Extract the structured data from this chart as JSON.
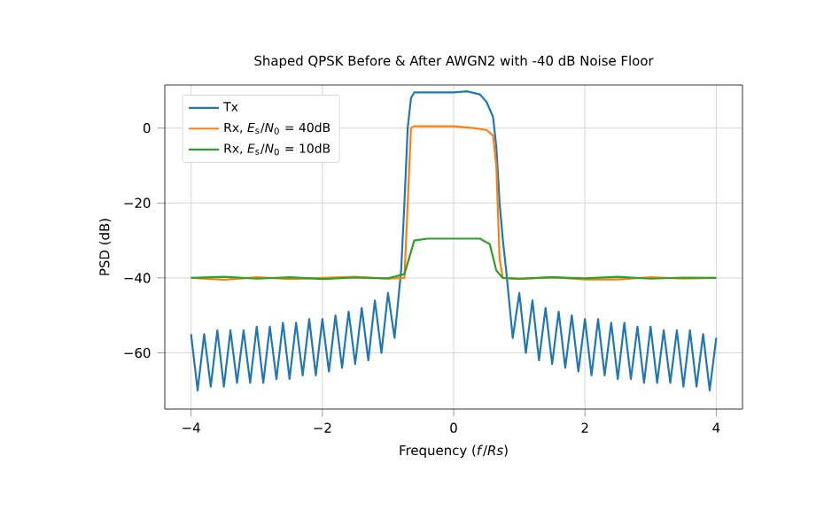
{
  "chart_data": {
    "type": "line",
    "title": "Shaped QPSK Before & After AWGN2 with -40 dB Noise Floor",
    "xlabel": "Frequency (*f*/*Rs*)",
    "ylabel": "PSD (dB)",
    "xlim": [
      -4.4,
      4.4
    ],
    "ylim": [
      -75,
      11.5
    ],
    "xticks": [
      {
        "value": -4,
        "label": "−4"
      },
      {
        "value": -2,
        "label": "−2"
      },
      0,
      2,
      4
    ],
    "yticks": [
      {
        "value": -60,
        "label": "−60"
      },
      {
        "value": -40,
        "label": "−40"
      },
      {
        "value": -20,
        "label": "−20"
      },
      0
    ],
    "grid": true,
    "legend": "top left",
    "line_style": "solid",
    "marker": "none",
    "series": [
      {
        "name": "Tx",
        "color": "#1f77b4",
        "x": [
          -4.0,
          -3.9,
          -3.8,
          -3.7,
          -3.6,
          -3.5,
          -3.4,
          -3.3,
          -3.2,
          -3.1,
          -3.0,
          -2.9,
          -2.8,
          -2.7,
          -2.6,
          -2.5,
          -2.4,
          -2.3,
          -2.2,
          -2.1,
          -2.0,
          -1.9,
          -1.8,
          -1.7,
          -1.6,
          -1.5,
          -1.4,
          -1.3,
          -1.2,
          -1.1,
          -1.0,
          -0.9,
          -0.8,
          -0.75,
          -0.7,
          -0.65,
          -0.6,
          -0.4,
          -0.2,
          0,
          0.2,
          0.4,
          0.5,
          0.6,
          0.65,
          0.7,
          0.75,
          0.8,
          0.9,
          1.0,
          1.1,
          1.2,
          1.3,
          1.4,
          1.5,
          1.6,
          1.7,
          1.8,
          1.9,
          2.0,
          2.1,
          2.2,
          2.3,
          2.4,
          2.5,
          2.6,
          2.7,
          2.8,
          2.9,
          3.0,
          3.1,
          3.2,
          3.3,
          3.4,
          3.5,
          3.6,
          3.7,
          3.8,
          3.9,
          4.0
        ],
        "values": [
          -55,
          -70,
          -55,
          -69,
          -54,
          -69,
          -54,
          -68,
          -54,
          -68,
          -53,
          -68,
          -53,
          -67,
          -52,
          -67,
          -52,
          -66,
          -51,
          -66,
          -51,
          -65,
          -50,
          -64,
          -49,
          -63,
          -48,
          -62,
          -46,
          -60,
          -44,
          -56,
          -38,
          -20,
          0,
          8,
          9.5,
          9.5,
          9.5,
          9.5,
          9.8,
          9,
          7,
          3,
          -5,
          -20,
          -30,
          -38,
          -56,
          -44,
          -60,
          -46,
          -62,
          -48,
          -63,
          -49,
          -64,
          -50,
          -65,
          -51,
          -66,
          -51,
          -66,
          -52,
          -67,
          -52,
          -67,
          -53,
          -68,
          -53,
          -68,
          -54,
          -68,
          -54,
          -69,
          -54,
          -69,
          -55,
          -70,
          -56
        ]
      },
      {
        "name": "Rx, *E*$_{s}$/*N*$_{0}$ =  40dB",
        "color": "#ff7f0e",
        "x": [
          -4,
          -3.5,
          -3,
          -2.5,
          -2,
          -1.5,
          -1,
          -0.75,
          -0.7,
          -0.65,
          -0.6,
          0,
          0.3,
          0.5,
          0.6,
          0.65,
          0.7,
          0.75,
          1,
          1.5,
          2,
          2.5,
          3,
          3.5,
          4
        ],
        "values": [
          -40,
          -40.5,
          -39.8,
          -40.3,
          -40,
          -39.7,
          -40.2,
          -40,
          -20,
          0,
          0.5,
          0.5,
          0,
          -0.5,
          -2,
          -10,
          -35,
          -40,
          -40.3,
          -39.8,
          -40.4,
          -40.4,
          -39.8,
          -40.2,
          -40
        ]
      },
      {
        "name": "Rx, *E*$_{s}$/*N*$_{0}$ =  10dB",
        "color": "#2ca02c",
        "x": [
          -4,
          -3.5,
          -3,
          -2.5,
          -2,
          -1.5,
          -1,
          -0.75,
          -0.6,
          -0.4,
          0,
          0.4,
          0.55,
          0.65,
          0.75,
          1,
          1.5,
          2,
          2.5,
          3,
          3.5,
          4
        ],
        "values": [
          -40,
          -39.7,
          -40.2,
          -39.8,
          -40.3,
          -39.9,
          -40.1,
          -39,
          -30,
          -29.5,
          -29.5,
          -29.5,
          -31,
          -38,
          -40,
          -40.2,
          -39.8,
          -40.1,
          -39.7,
          -40.2,
          -39.9,
          -40
        ]
      }
    ]
  }
}
